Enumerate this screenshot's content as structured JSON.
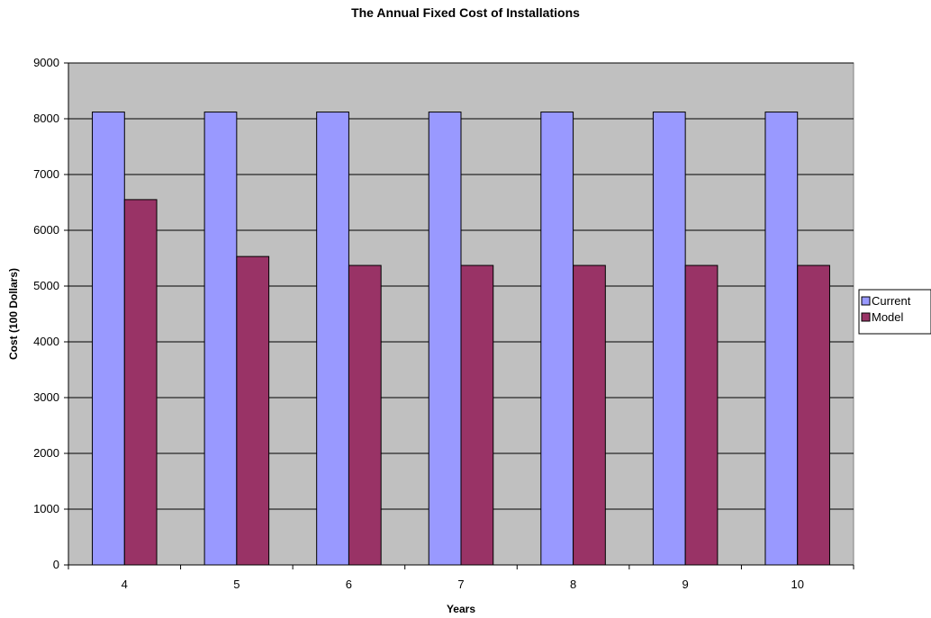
{
  "chart_data": {
    "type": "bar",
    "title": "The Annual Fixed Cost of Installations",
    "xlabel": "Years",
    "ylabel": "Cost (100 Dollars)",
    "categories": [
      "4",
      "5",
      "6",
      "7",
      "8",
      "9",
      "10"
    ],
    "ylim": [
      0,
      9000
    ],
    "yticks": [
      "0",
      "1000",
      "2000",
      "3000",
      "4000",
      "5000",
      "6000",
      "7000",
      "8000",
      "9000"
    ],
    "grid": true,
    "legend_position": "right",
    "series": [
      {
        "name": "Current",
        "color": "#9999ff",
        "values": [
          8120,
          8120,
          8120,
          8120,
          8120,
          8120,
          8120
        ]
      },
      {
        "name": "Model",
        "color": "#993366",
        "values": [
          6550,
          5530,
          5370,
          5370,
          5370,
          5370,
          5370
        ]
      }
    ],
    "plot_background": "#c0c0c0"
  }
}
